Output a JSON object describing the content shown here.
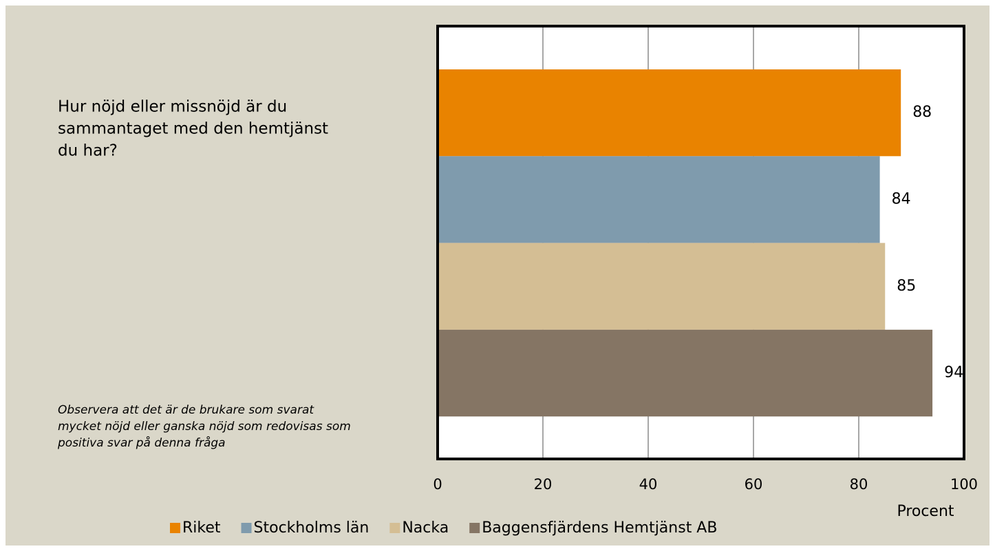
{
  "chart_data": {
    "type": "bar",
    "orientation": "horizontal",
    "question": [
      "Hur nöjd eller missnöjd är du",
      "sammantaget med den hemtjänst",
      "du har?"
    ],
    "note": [
      "Observera att det är de brukare som svarat",
      "mycket  nöjd eller ganska nöjd som redovisas som",
      "positiva svar på denna fråga"
    ],
    "categories": [
      null
    ],
    "series": [
      {
        "name": "Riket",
        "color": "#e98300",
        "values": [
          88
        ]
      },
      {
        "name": "Stockholms län",
        "color": "#7f9bad",
        "values": [
          84
        ]
      },
      {
        "name": "Nacka",
        "color": "#d4be94",
        "values": [
          85
        ]
      },
      {
        "name": "Baggensfjärdens Hemtjänst AB",
        "color": "#857564",
        "values": [
          94
        ]
      }
    ],
    "xlabel": "Procent",
    "xlim": [
      0,
      100
    ],
    "xticks": [
      0,
      20,
      40,
      60,
      80,
      100
    ],
    "grid": true,
    "legend": "bottom"
  }
}
